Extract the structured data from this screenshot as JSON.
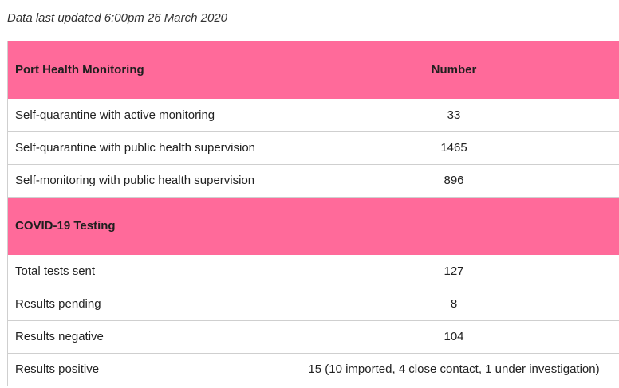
{
  "updated_text": "Data last updated 6:00pm 26 March 2020",
  "port_health": {
    "heading": "Port Health Monitoring",
    "value_heading": "Number",
    "rows": [
      {
        "label": "Self-quarantine with active monitoring",
        "value": "33"
      },
      {
        "label": "Self-quarantine with public health supervision",
        "value": "1465"
      },
      {
        "label": "Self-monitoring with public health supervision",
        "value": "896"
      }
    ]
  },
  "testing": {
    "heading": "COVID-19 Testing",
    "rows": [
      {
        "label": "Total tests sent",
        "value": "127"
      },
      {
        "label": "Results pending",
        "value": "8"
      },
      {
        "label": "Results negative",
        "value": "104"
      },
      {
        "label": "Results positive",
        "value": "15 (10 imported, 4 close contact, 1 under investigation)"
      }
    ]
  },
  "colors": {
    "section_header_bg": "#ff6a9a",
    "row_divider": "#cfcfcf"
  }
}
